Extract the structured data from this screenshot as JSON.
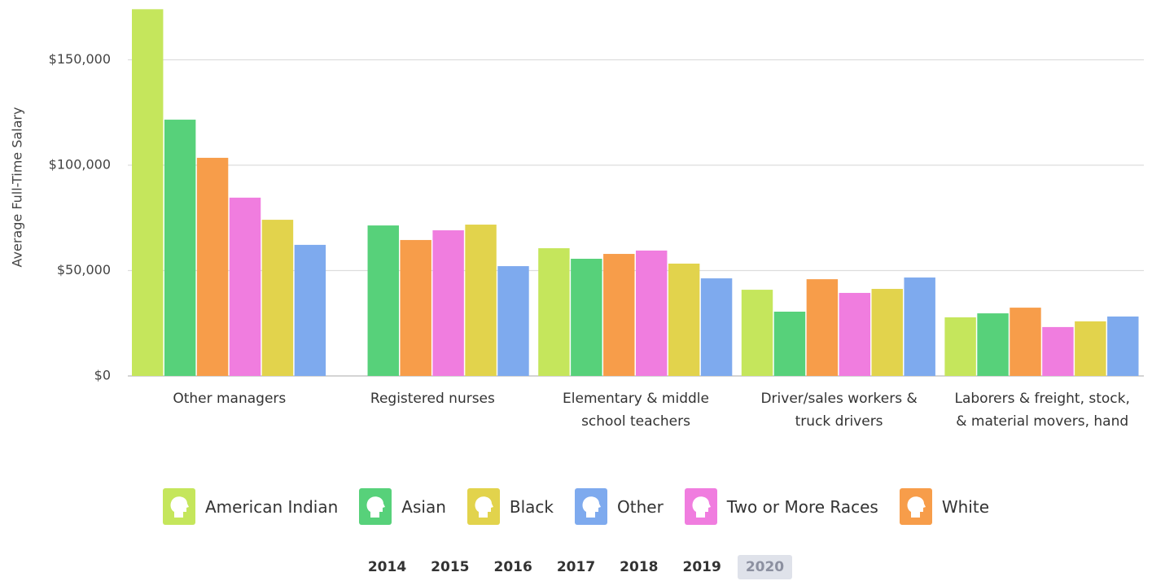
{
  "chart_data": {
    "type": "bar",
    "y_label": "Average Full-Time Salary",
    "categories": [
      "Other managers",
      "Registered nurses",
      "Elementary & middle school teachers",
      "Driver/sales workers & truck drivers",
      "Laborers & freight, stock, & material movers, hand"
    ],
    "series": [
      {
        "name": "American Indian",
        "color": "#c5e65c",
        "values": [
          174000,
          null,
          60600,
          40900,
          27800
        ]
      },
      {
        "name": "Asian",
        "color": "#57d17a",
        "values": [
          121600,
          71400,
          55600,
          30500,
          29700
        ]
      },
      {
        "name": "Black",
        "color": "#e2d34c",
        "values": [
          74100,
          71800,
          53300,
          41300,
          25900
        ]
      },
      {
        "name": "Other",
        "color": "#7eaaee",
        "values": [
          62200,
          52100,
          46300,
          46700,
          28200
        ]
      },
      {
        "name": "Two or More Races",
        "color": "#f07ddf",
        "values": [
          84600,
          69100,
          59500,
          39400,
          23200
        ]
      },
      {
        "name": "White",
        "color": "#f79d4a",
        "values": [
          103500,
          64500,
          57900,
          45900,
          32400
        ]
      }
    ],
    "ylim": [
      0,
      175000
    ],
    "yticks": [
      {
        "value": 0,
        "label": "$0"
      },
      {
        "value": 50000,
        "label": "$50,000"
      },
      {
        "value": 100000,
        "label": "$100,000"
      },
      {
        "value": 150000,
        "label": "$150,000"
      }
    ],
    "grid": true
  },
  "years": [
    "2014",
    "2015",
    "2016",
    "2017",
    "2018",
    "2019",
    "2020"
  ],
  "selected_year": 6
}
